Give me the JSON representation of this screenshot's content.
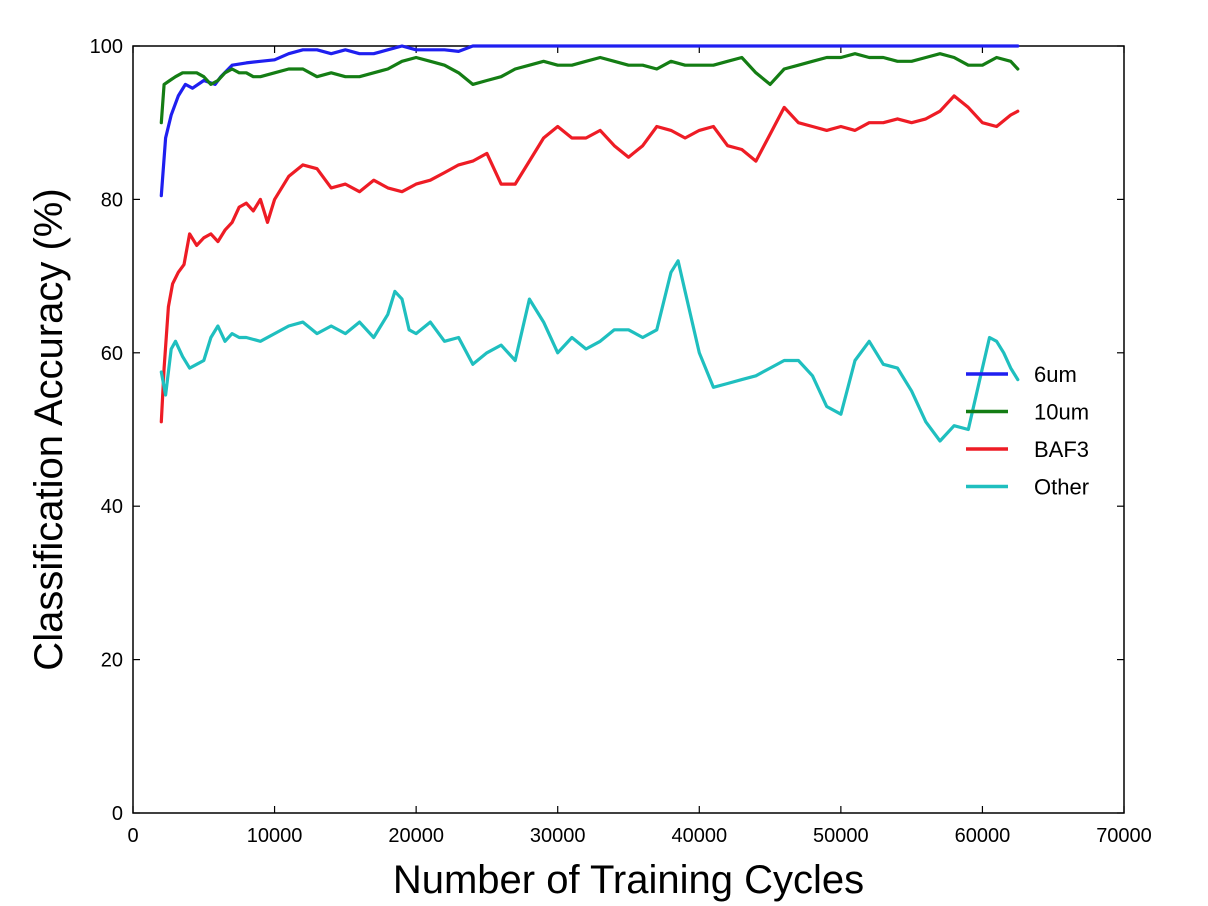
{
  "chart_data": {
    "type": "line",
    "title": "",
    "xlabel": "Number of Training Cycles",
    "ylabel": "Classification Accuracy (%)",
    "xlim": [
      0,
      70000
    ],
    "ylim": [
      0,
      100
    ],
    "xticks": [
      0,
      10000,
      20000,
      30000,
      40000,
      50000,
      60000,
      70000
    ],
    "yticks": [
      0,
      20,
      40,
      60,
      80,
      100
    ],
    "grid": false,
    "legend_position": "right",
    "series": [
      {
        "name": "6um",
        "color": "#1f1ff0",
        "x": [
          2000,
          2300,
          2700,
          3200,
          3700,
          4200,
          5000,
          5800,
          6200,
          7000,
          8000,
          9000,
          10000,
          11000,
          12000,
          13000,
          14000,
          15000,
          16000,
          17000,
          18000,
          19000,
          20000,
          21000,
          22000,
          23000,
          24000,
          26000,
          30000,
          35000,
          40000,
          45000,
          50000,
          55000,
          60000,
          62500
        ],
        "y": [
          80.5,
          88,
          91,
          93.5,
          95,
          94.5,
          95.5,
          95,
          96,
          97.5,
          97.8,
          98,
          98.2,
          99,
          99.5,
          99.5,
          99,
          99.5,
          99,
          99,
          99.5,
          100,
          99.5,
          99.5,
          99.5,
          99.3,
          100,
          100,
          100,
          100,
          100,
          100,
          100,
          100,
          100,
          100
        ]
      },
      {
        "name": "10um",
        "color": "#147d14",
        "x": [
          2000,
          2200,
          2600,
          3000,
          3500,
          4000,
          4500,
          5000,
          5500,
          6000,
          6500,
          7000,
          7500,
          8000,
          8500,
          9000,
          10000,
          11000,
          12000,
          13000,
          14000,
          15000,
          16000,
          17000,
          18000,
          19000,
          20000,
          21000,
          22000,
          23000,
          24000,
          25000,
          26000,
          27000,
          28000,
          29000,
          30000,
          31000,
          32000,
          33000,
          34000,
          35000,
          36000,
          37000,
          38000,
          39000,
          40000,
          41000,
          42000,
          43000,
          44000,
          45000,
          46000,
          47000,
          48000,
          49000,
          50000,
          51000,
          52000,
          53000,
          54000,
          55000,
          56000,
          57000,
          58000,
          59000,
          60000,
          61000,
          62000,
          62500
        ],
        "y": [
          90,
          95,
          95.5,
          96,
          96.5,
          96.5,
          96.5,
          96,
          95,
          95.5,
          96.5,
          97,
          96.5,
          96.5,
          96,
          96,
          96.5,
          97,
          97,
          96,
          96.5,
          96,
          96,
          96.5,
          97,
          98,
          98.5,
          98,
          97.5,
          96.5,
          95,
          95.5,
          96,
          97,
          97.5,
          98,
          97.5,
          97.5,
          98,
          98.5,
          98,
          97.5,
          97.5,
          97,
          98,
          97.5,
          97.5,
          97.5,
          98,
          98.5,
          96.5,
          95,
          97,
          97.5,
          98,
          98.5,
          98.5,
          99,
          98.5,
          98.5,
          98,
          98,
          98.5,
          99,
          98.5,
          97.5,
          97.5,
          98.5,
          98,
          97
        ]
      },
      {
        "name": "BAF3",
        "color": "#ee1c25",
        "x": [
          2000,
          2200,
          2500,
          2800,
          3200,
          3600,
          4000,
          4500,
          5000,
          5500,
          6000,
          6500,
          7000,
          7500,
          8000,
          8500,
          9000,
          9500,
          10000,
          11000,
          12000,
          13000,
          14000,
          15000,
          16000,
          17000,
          18000,
          19000,
          20000,
          21000,
          22000,
          23000,
          24000,
          25000,
          26000,
          27000,
          28000,
          29000,
          30000,
          31000,
          32000,
          33000,
          34000,
          35000,
          36000,
          37000,
          38000,
          39000,
          40000,
          41000,
          42000,
          43000,
          44000,
          45000,
          46000,
          47000,
          48000,
          49000,
          50000,
          51000,
          52000,
          53000,
          54000,
          55000,
          56000,
          57000,
          58000,
          59000,
          60000,
          61000,
          62000,
          62500
        ],
        "y": [
          51,
          58,
          66,
          69,
          70.5,
          71.5,
          75.5,
          74,
          75,
          75.5,
          74.5,
          76,
          77,
          79,
          79.5,
          78.5,
          80,
          77,
          80,
          83,
          84.5,
          84,
          81.5,
          82,
          81,
          82.5,
          81.5,
          81,
          82,
          82.5,
          83.5,
          84.5,
          85,
          86,
          82,
          82,
          85,
          88,
          89.5,
          88,
          88,
          89,
          87,
          85.5,
          87,
          89.5,
          89,
          88,
          89,
          89.5,
          87,
          86.5,
          85,
          88.5,
          92,
          90,
          89.5,
          89,
          89.5,
          89,
          90,
          90,
          90.5,
          90,
          90.5,
          91.5,
          93.5,
          92,
          90,
          89.5,
          91,
          91.5
        ]
      },
      {
        "name": "Other",
        "color": "#1fbfbf",
        "x": [
          2000,
          2300,
          2700,
          3000,
          3500,
          4000,
          4500,
          5000,
          5500,
          6000,
          6500,
          7000,
          7500,
          8000,
          9000,
          10000,
          11000,
          12000,
          13000,
          14000,
          15000,
          16000,
          17000,
          18000,
          18500,
          19000,
          19500,
          20000,
          21000,
          22000,
          23000,
          24000,
          25000,
          26000,
          27000,
          28000,
          29000,
          30000,
          31000,
          32000,
          33000,
          34000,
          35000,
          36000,
          37000,
          38000,
          38500,
          39000,
          39500,
          40000,
          41000,
          42000,
          43000,
          44000,
          45000,
          46000,
          47000,
          48000,
          49000,
          50000,
          51000,
          52000,
          53000,
          54000,
          55000,
          56000,
          57000,
          58000,
          59000,
          60000,
          60500,
          61000,
          61500,
          62000,
          62500
        ],
        "y": [
          57.5,
          54.5,
          60.5,
          61.5,
          59.5,
          58,
          58.5,
          59,
          62,
          63.5,
          61.5,
          62.5,
          62,
          62,
          61.5,
          62.5,
          63.5,
          64,
          62.5,
          63.5,
          62.5,
          64,
          62,
          65,
          68,
          67,
          63,
          62.5,
          64,
          61.5,
          62,
          58.5,
          60,
          61,
          59,
          67,
          64,
          60,
          62,
          60.5,
          61.5,
          63,
          63,
          62,
          63,
          70.5,
          72,
          68,
          64,
          60,
          55.5,
          56,
          56.5,
          57,
          58,
          59,
          59,
          57,
          53,
          52,
          59,
          61.5,
          58.5,
          58,
          55,
          51,
          48.5,
          50.5,
          50,
          58,
          62,
          61.5,
          60,
          58,
          56.5
        ]
      }
    ]
  }
}
